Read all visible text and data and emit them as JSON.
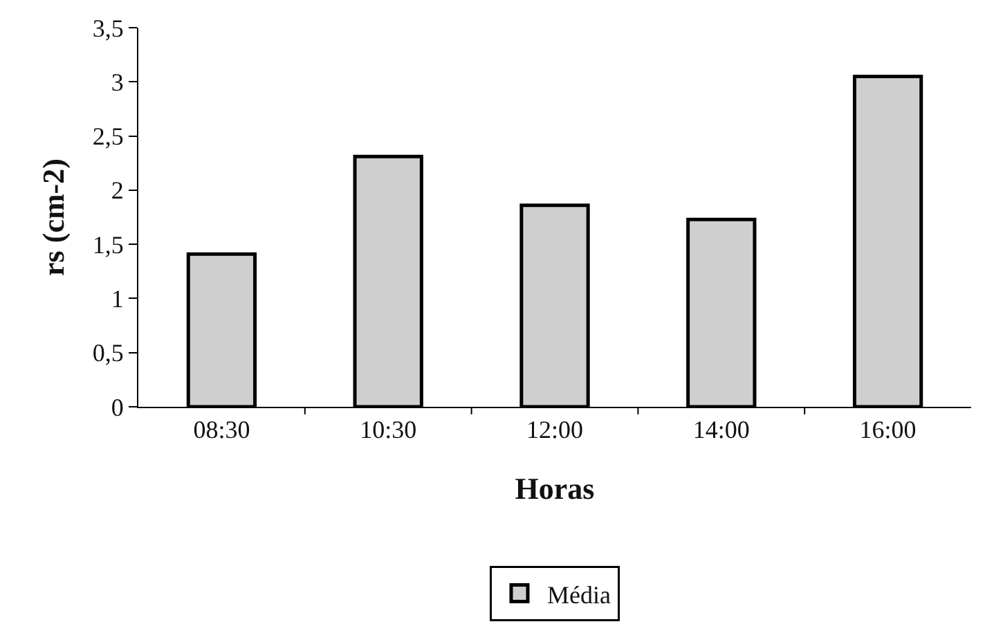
{
  "chart_data": {
    "type": "bar",
    "xlabel": "Horas",
    "ylabel": "rs (cm-2)",
    "categories": [
      "08:30",
      "10:30",
      "12:00",
      "14:00",
      "16:00"
    ],
    "series": [
      {
        "name": "Média",
        "color": "#cfcfcf",
        "values": [
          1.41,
          2.31,
          1.86,
          1.73,
          3.05
        ]
      }
    ],
    "ylim": [
      0,
      3.5
    ],
    "yticks": [
      0,
      {
        "value": 0.5,
        "label": "0,5"
      },
      1,
      {
        "value": 1.5,
        "label": "1,5"
      },
      2,
      {
        "value": 2.5,
        "label": "2,5"
      },
      3,
      {
        "value": 3.5,
        "label": "3,5"
      }
    ],
    "grid": false,
    "legend": "bottom"
  }
}
